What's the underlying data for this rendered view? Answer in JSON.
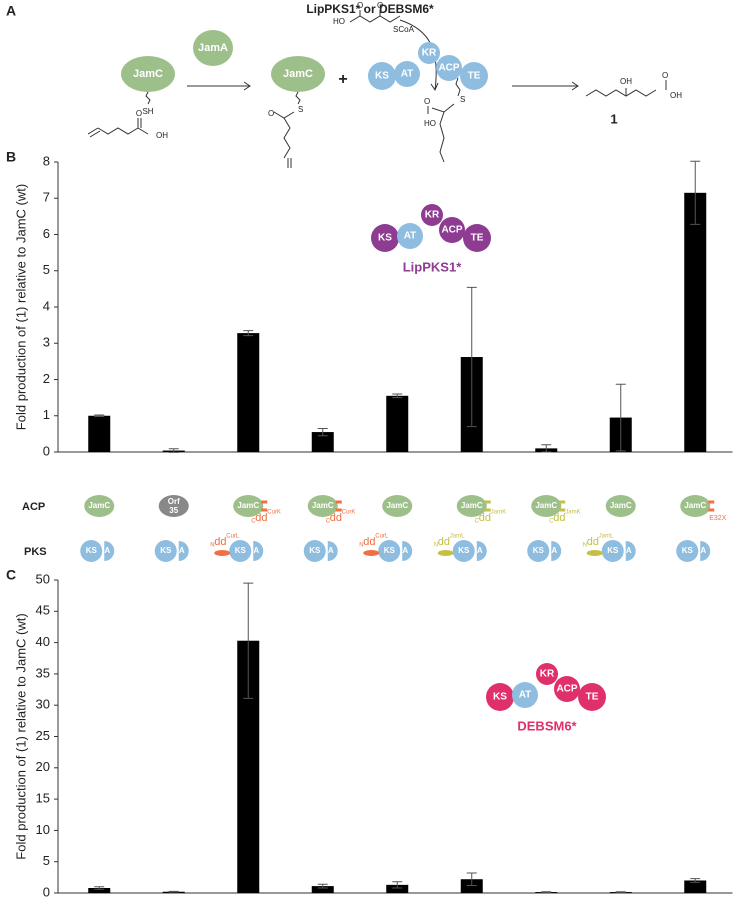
{
  "scheme": {
    "label": "A",
    "title": "LipPKS1* or DEBSM6*",
    "jamc": [
      "JamC",
      "JamC"
    ],
    "jama": "JamA",
    "plus": "+",
    "domains": [
      "KS",
      "AT",
      "KR",
      "ACP",
      "TE"
    ],
    "atoms": [
      "SH",
      "OH",
      "O",
      "S",
      "O",
      "HO",
      "O",
      "O",
      "SCoA",
      "S",
      "O",
      "HO",
      "OH",
      "OH",
      "O"
    ],
    "product": "1"
  },
  "row_labels": {
    "acp": "ACP",
    "pks": "PKS"
  },
  "acp_row": [
    {
      "label": "JamC"
    },
    {
      "label": "Orf 35"
    },
    {
      "label": "JamC",
      "end": "C",
      "dd": "dd",
      "sup": "CurK"
    },
    {
      "label": "JamC",
      "end": "C",
      "dd": "dd",
      "sup": "CurK"
    },
    {
      "label": "JamC"
    },
    {
      "label": "JamC",
      "end": "C",
      "dd": "dd",
      "sup": "JamK"
    },
    {
      "label": "JamC",
      "end": "C",
      "dd": "dd",
      "sup": "JamK"
    },
    {
      "label": "JamC"
    },
    {
      "label": "JamC",
      "sup": "E32X"
    }
  ],
  "pks_row": [
    {
      "ks": "KS",
      "a": "A"
    },
    {
      "ks": "KS",
      "a": "A"
    },
    {
      "ks": "KS",
      "a": "A",
      "end": "N",
      "dd": "dd",
      "sup": "CurL"
    },
    {
      "ks": "KS",
      "a": "A"
    },
    {
      "ks": "KS",
      "a": "A",
      "end": "N",
      "dd": "dd",
      "sup": "CurL"
    },
    {
      "ks": "KS",
      "a": "A",
      "end": "N",
      "dd": "dd",
      "sup": "JamL"
    },
    {
      "ks": "KS",
      "a": "A"
    },
    {
      "ks": "KS",
      "a": "A",
      "end": "N",
      "dd": "dd",
      "sup": "JamL"
    },
    {
      "ks": "KS",
      "a": "A"
    }
  ],
  "chart_data": [
    {
      "type": "bar",
      "label": "B",
      "ylabel": "Fold production of (1) relative to JamC (wt)",
      "categories": [
        null,
        null,
        null,
        null,
        null,
        null,
        null,
        null,
        null
      ],
      "values": [
        1.0,
        0.04,
        3.28,
        0.55,
        1.55,
        2.62,
        0.1,
        0.95,
        7.15
      ],
      "errors": [
        0.02,
        0.05,
        0.07,
        0.1,
        0.05,
        1.92,
        0.1,
        0.92,
        0.87
      ],
      "color": "#000000",
      "ylim": [
        0,
        8
      ],
      "yticks": [
        0,
        1,
        2,
        3,
        4,
        5,
        6,
        7,
        8
      ],
      "inset": {
        "title": "LipPKS1*",
        "domains": [
          "KS",
          "AT",
          "KR",
          "ACP",
          "TE"
        ],
        "color": "#8e3b92"
      }
    },
    {
      "type": "bar",
      "label": "C",
      "ylabel": "Fold production of (1) relative to JamC (wt)",
      "categories": [
        null,
        null,
        null,
        null,
        null,
        null,
        null,
        null,
        null
      ],
      "values": [
        0.8,
        0.2,
        40.3,
        1.1,
        1.3,
        2.2,
        0.15,
        0.15,
        2.0
      ],
      "errors": [
        0.2,
        0.05,
        9.2,
        0.3,
        0.5,
        1.0,
        0.05,
        0.05,
        0.3
      ],
      "color": "#000000",
      "ylim": [
        0,
        50
      ],
      "yticks": [
        0,
        5,
        10,
        15,
        20,
        25,
        30,
        35,
        40,
        45,
        50
      ],
      "inset": {
        "title": "DEBSM6*",
        "domains": [
          "KS",
          "AT",
          "KR",
          "ACP",
          "TE"
        ],
        "color": "#e0306b"
      }
    }
  ]
}
